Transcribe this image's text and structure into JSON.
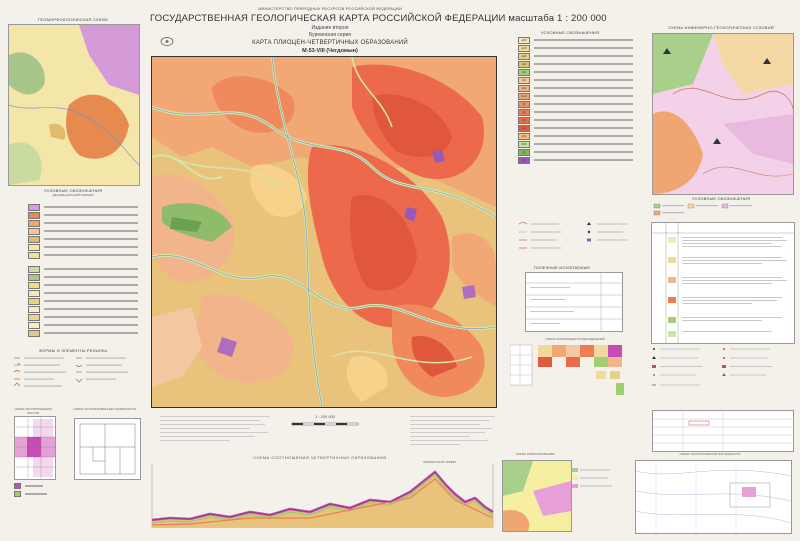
{
  "header": {
    "ministry": "МИНИСТЕРСТВО ПРИРОДНЫХ РЕСУРСОВ РОССИЙСКОЙ ФЕДЕРАЦИИ",
    "title": "ГОСУДАРСТВЕННАЯ ГЕОЛОГИЧЕСКАЯ КАРТА РОССИЙСКОЙ ФЕДЕРАЦИИ масштаба 1 : 200 000",
    "edition": "Издание второе",
    "series": "Буреинская серия",
    "map_title": "КАРТА ПЛИОЦЕН-ЧЕТВЕРТИЧНЫХ ОБРАЗОВАНИЙ",
    "sheet": "M-53-VIII (Чегдомын)"
  },
  "left_panel": {
    "inset_title": "ГЕОМОРФОЛОГИЧЕСКАЯ СХЕМА",
    "legend_title": "УСЛОВНЫЕ ОБОЗНАЧЕНИЯ",
    "legend_sub": "ДЕНУДАЦИОННЫЙ РЕЛЬЕФ",
    "forms_title": "ФОРМЫ И ЭЛЕМЕНТЫ РЕЛЬЕФА",
    "scheme1_title": "СХЕМА РАСПОЛОЖЕНИЯ ЛИСТОВ",
    "scheme2_title": "СХЕМА ИСПОЛЬЗОВАННЫХ МАТЕРИАЛОВ"
  },
  "right_panel": {
    "legend_title": "УСЛОВНЫЕ ОБОЗНАЧЕНИЯ",
    "inset_title": "СХЕМА ИНЖЕНЕРНО-ГЕОЛОГИЧЕСКИХ УСЛОВИЙ",
    "legend2_title": "УСЛОВНЫЕ ОБОЗНАЧЕНИЯ",
    "corr_title": "СХЕМА КОРРЕЛЯЦИИ ПОДРАЗДЕЛЕНИЙ",
    "useful_title": "ПОЛЕЗНЫЕ ИСКОПАЕМЫЕ",
    "legend_codes": [
      "aQH",
      "aQIII",
      "aQII",
      "aQI",
      "pQ",
      "dQ",
      "dpQ",
      "N2-Q",
      "lQ",
      "gQ",
      "fQ",
      "eQ",
      "eQII",
      "dQIII",
      "sQ",
      "Q"
    ]
  },
  "bottom": {
    "scale": "1 : 200 000",
    "profile_title": "СХЕМА СООТНОШЕНИЙ ЧЕТВЕРТИЧНЫХ ОБРАЗОВАНИЙ",
    "peak_label": "БУРЕИНСКИЙ ХРЕБЕТ",
    "inset2_title": "СХЕМА РАЙОНИРОВАНИЯ",
    "inset3_title": "СХЕМА ГЕОЛОГИЧЕСКОЙ ИЗУЧЕННОСТИ"
  }
}
